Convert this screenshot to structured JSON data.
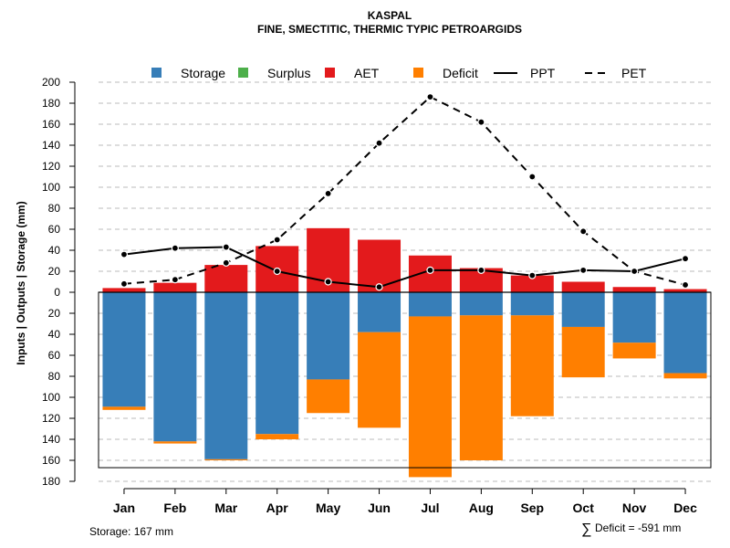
{
  "chart_data": {
    "type": "bar",
    "title": "KASPAL",
    "subtitle": "FINE, SMECTITIC, THERMIC TYPIC PETROARGIDS",
    "ylabel": "Inputs | Outputs | Storage     (mm)",
    "ylim": [
      -180,
      200
    ],
    "y_ticks": [
      200,
      180,
      160,
      140,
      120,
      100,
      80,
      60,
      40,
      20,
      0,
      -20,
      -40,
      -60,
      -80,
      -100,
      -120,
      -140,
      -160,
      -180
    ],
    "y_tick_labels": [
      "200",
      "180",
      "160",
      "140",
      "120",
      "100",
      "80",
      "60",
      "40",
      "20",
      "0",
      "20",
      "40",
      "60",
      "80",
      "100",
      "120",
      "140",
      "160",
      "180"
    ],
    "categories": [
      "Jan",
      "Feb",
      "Mar",
      "Apr",
      "May",
      "Jun",
      "Jul",
      "Aug",
      "Sep",
      "Oct",
      "Nov",
      "Dec"
    ],
    "series": [
      {
        "name": "AET",
        "color": "#E31A1C",
        "values": [
          4,
          9,
          26,
          44,
          61,
          50,
          35,
          23,
          16,
          10,
          5,
          3
        ]
      },
      {
        "name": "Storage",
        "color": "#377EB8",
        "values": [
          109,
          142,
          159,
          135,
          83,
          38,
          23,
          22,
          22,
          33,
          48,
          77
        ]
      },
      {
        "name": "Deficit",
        "color": "#FF7F00",
        "values": [
          3,
          2,
          1,
          5,
          32,
          91,
          153,
          138,
          96,
          48,
          15,
          5
        ]
      },
      {
        "name": "Surplus",
        "color": "#4DAF4A",
        "values": [
          0,
          0,
          0,
          0,
          0,
          0,
          0,
          0,
          0,
          0,
          0,
          0
        ]
      },
      {
        "name": "PPT",
        "color": "#000000",
        "style": "solid",
        "values": [
          36,
          42,
          43,
          20,
          10,
          5,
          21,
          21,
          16,
          21,
          20,
          32
        ]
      },
      {
        "name": "PET",
        "color": "#000000",
        "style": "dashed",
        "values": [
          8,
          12,
          28,
          50,
          94,
          142,
          186,
          162,
          110,
          58,
          20,
          7
        ]
      }
    ],
    "legend": {
      "position": "top",
      "entries": [
        {
          "label": "Storage",
          "color": "#377EB8",
          "kind": "square"
        },
        {
          "label": "Surplus",
          "color": "#4DAF4A",
          "kind": "square"
        },
        {
          "label": "AET",
          "color": "#E31A1C",
          "kind": "square"
        },
        {
          "label": "Deficit",
          "color": "#FF7F00",
          "kind": "square"
        },
        {
          "label": "PPT",
          "color": "#000000",
          "kind": "solid"
        },
        {
          "label": "PET",
          "color": "#000000",
          "kind": "dashed"
        }
      ]
    },
    "storage_capacity": 167,
    "grid": true
  },
  "footer": {
    "storage": "Storage: 167 mm",
    "deficit_symbol": "∑",
    "deficit": "Deficit = -591 mm"
  }
}
